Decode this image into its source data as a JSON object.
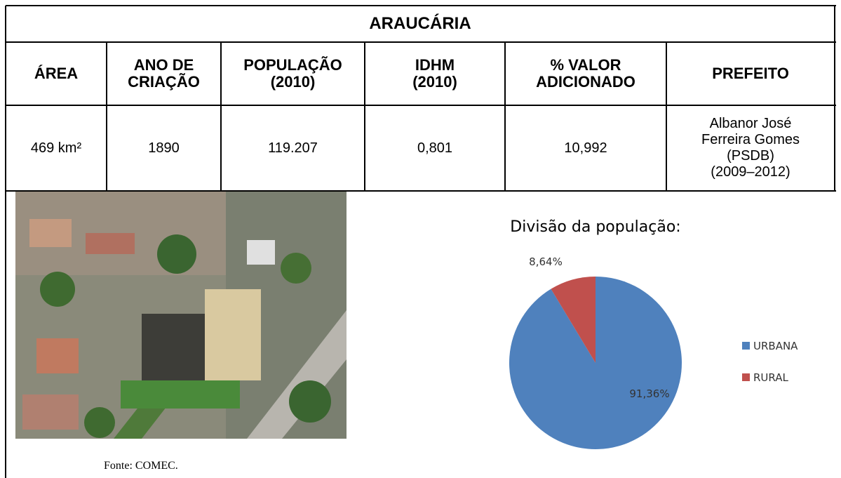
{
  "table": {
    "title": "ARAUCÁRIA",
    "headers": [
      [
        "ÁREA"
      ],
      [
        "ANO DE",
        "CRIAÇÃO"
      ],
      [
        "POPULAÇÃO",
        "(2010)"
      ],
      [
        "IDHM",
        "(2010)"
      ],
      [
        "% VALOR",
        "ADICIONADO"
      ],
      [
        "PREFEITO"
      ]
    ],
    "row": [
      [
        "469 km²"
      ],
      [
        "1890"
      ],
      [
        "119.207"
      ],
      [
        "0,801"
      ],
      [
        "10,992"
      ],
      [
        "Albanor José",
        "Ferreira Gomes",
        "(PSDB)",
        "(2009–2012)"
      ]
    ]
  },
  "caption": "Fonte: COMEC.",
  "chart_data": {
    "type": "pie",
    "title": "Divisão da população:",
    "categories": [
      "URBANA",
      "RURAL"
    ],
    "values": [
      91.36,
      8.64
    ],
    "value_labels": [
      "91,36%",
      "8,64%"
    ],
    "colors": [
      "#4f81bd",
      "#c0504d"
    ]
  }
}
